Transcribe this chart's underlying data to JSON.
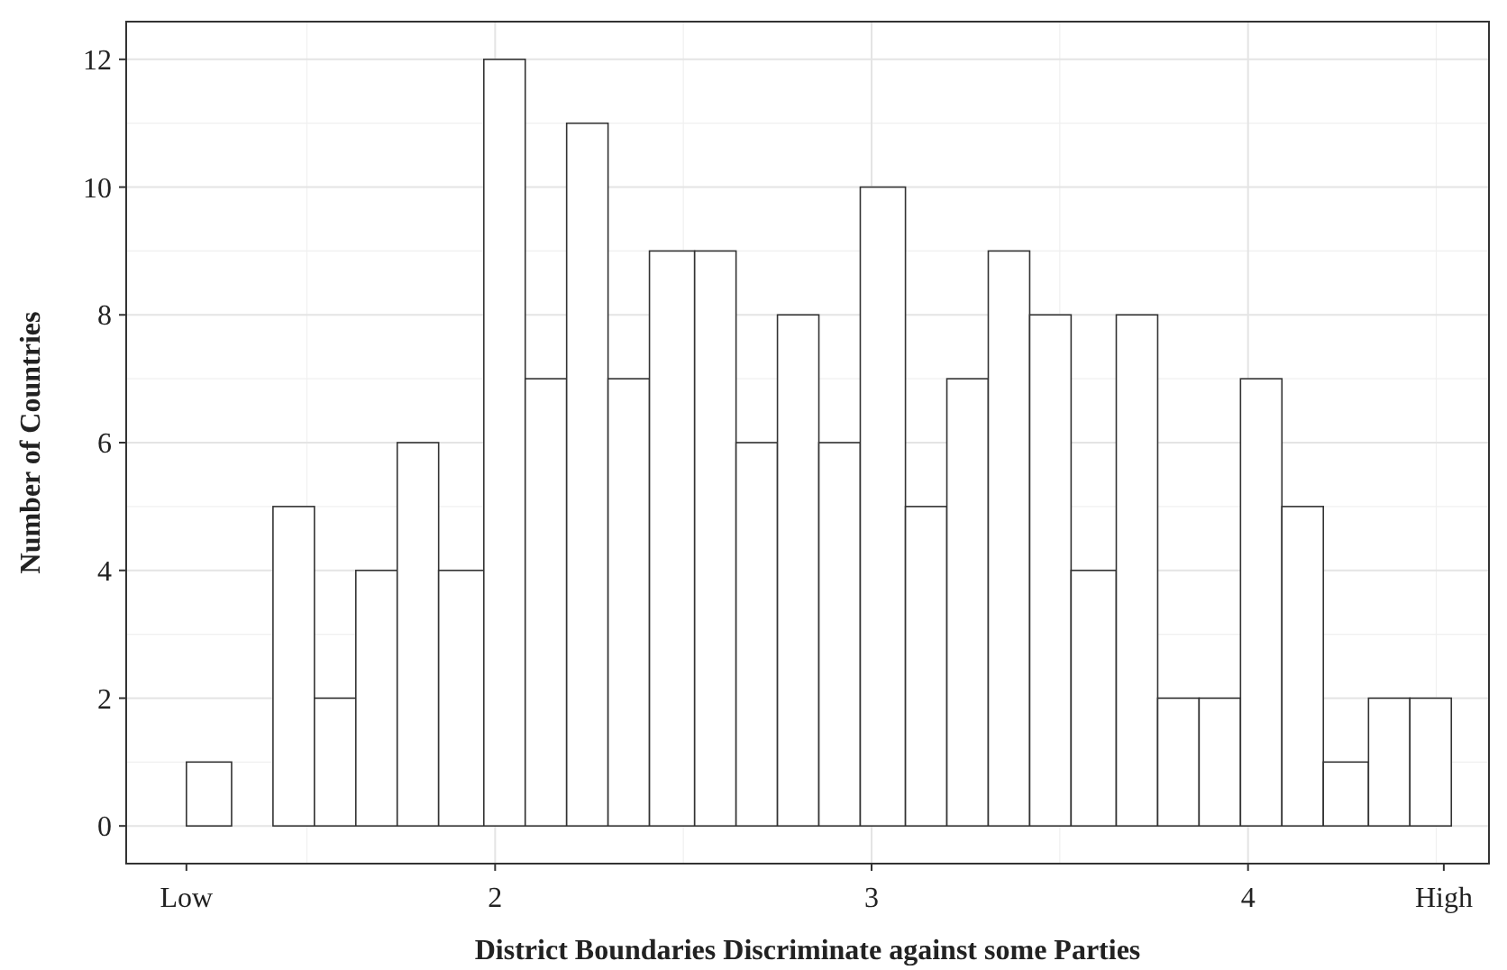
{
  "chart_data": {
    "type": "histogram",
    "xlabel": "District Boundaries Discriminate against some Parties",
    "ylabel": "Number of Countries",
    "bins": [
      1.18,
      1.3,
      1.41,
      1.52,
      1.63,
      1.74,
      1.85,
      1.97,
      2.08,
      2.19,
      2.3,
      2.41,
      2.53,
      2.64,
      2.75,
      2.86,
      2.97,
      3.09,
      3.2,
      3.31,
      3.42,
      3.53,
      3.65,
      3.76,
      3.87,
      3.98,
      4.09,
      4.2,
      4.32,
      4.43,
      4.54
    ],
    "values": [
      1,
      0,
      5,
      2,
      4,
      6,
      4,
      12,
      7,
      11,
      7,
      9,
      9,
      6,
      8,
      6,
      10,
      5,
      7,
      9,
      8,
      4,
      8,
      2,
      2,
      7,
      5,
      1,
      2,
      2
    ],
    "color": "#ffffff",
    "xlim": [
      1.02,
      4.64
    ],
    "xticks": [
      {
        "value": 1.18,
        "label": "Low"
      },
      2,
      3,
      4,
      {
        "value": 4.52,
        "label": "High"
      }
    ],
    "ylim": [
      -0.59,
      12.59
    ],
    "yticks": [
      0,
      2,
      4,
      6,
      8,
      10,
      12
    ],
    "grid": true
  }
}
